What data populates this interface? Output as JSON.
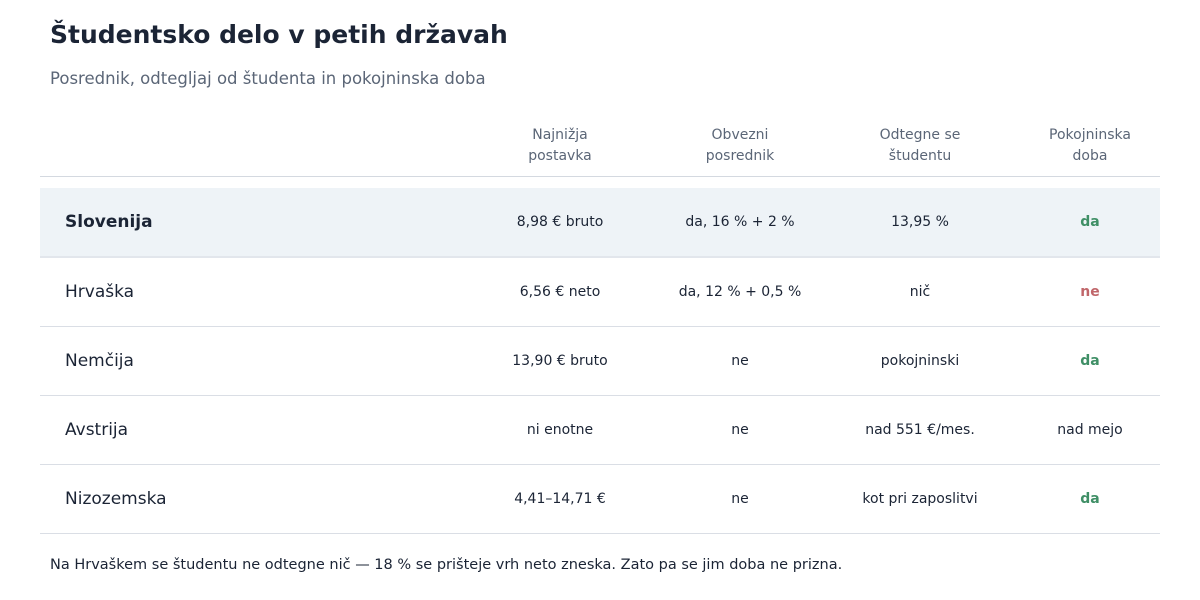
{
  "title": "Študentsko delo v petih državah",
  "subtitle": "Posrednik, odtegljaj od študenta in pokojninska doba",
  "columns": [
    {
      "line1": "Najnižja",
      "line2": "postavka"
    },
    {
      "line1": "Obvezni",
      "line2": "posrednik"
    },
    {
      "line1": "Odtegne se",
      "line2": "študentu"
    },
    {
      "line1": "Pokojninska",
      "line2": "doba"
    }
  ],
  "rows": [
    {
      "country": "Slovenija",
      "rate": "8,98 € bruto",
      "agency": "da, 16 % + 2 %",
      "deduction": "13,95 %",
      "pension": "da",
      "pension_status": "yes",
      "highlight": true
    },
    {
      "country": "Hrvaška",
      "rate": "6,56 € neto",
      "agency": "da, 12 % + 0,5 %",
      "deduction": "nič",
      "pension": "ne",
      "pension_status": "no",
      "highlight": false
    },
    {
      "country": "Nemčija",
      "rate": "13,90 € bruto",
      "agency": "ne",
      "deduction": "pokojninski",
      "pension": "da",
      "pension_status": "yes",
      "highlight": false
    },
    {
      "country": "Avstrija",
      "rate": "ni enotne",
      "agency": "ne",
      "deduction": "nad 551 €/mes.",
      "pension": "nad mejo",
      "pension_status": "neutral",
      "highlight": false
    },
    {
      "country": "Nizozemska",
      "rate": "4,41–14,71 €",
      "agency": "ne",
      "deduction": "kot pri zaposlitvi",
      "pension": "da",
      "pension_status": "yes",
      "highlight": false
    }
  ],
  "footnote": "Na Hrvaškem se študentu ne odtegne nič — 18 % se prišteje vrh neto zneska. Zato pa se jim doba ne prizna.",
  "colors": {
    "yes": "#3f8f66",
    "no": "#c0666a",
    "highlight_bg": "#eef3f7"
  }
}
